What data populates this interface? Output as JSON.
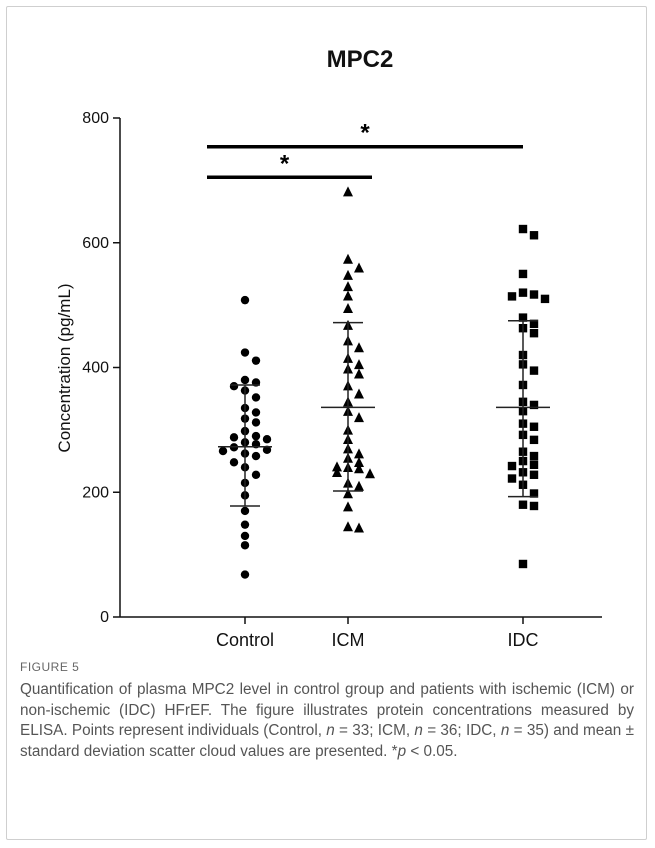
{
  "chart_data": {
    "type": "scatter",
    "title": "MPC2",
    "ylabel": "Concentration (pg/mL)",
    "xlabel": "",
    "ylim": [
      0,
      800
    ],
    "yticks": [
      0,
      200,
      400,
      600,
      800
    ],
    "categories": [
      "Control",
      "ICM",
      "IDC"
    ],
    "series": [
      {
        "name": "Control",
        "marker": "circle",
        "mean": 273,
        "sd_upper": 372,
        "sd_lower": 178,
        "values": [
          508,
          424,
          411,
          380,
          376,
          370,
          363,
          352,
          335,
          328,
          318,
          312,
          298,
          290,
          288,
          285,
          280,
          277,
          272,
          268,
          266,
          262,
          258,
          248,
          240,
          228,
          215,
          195,
          170,
          148,
          130,
          115,
          68
        ]
      },
      {
        "name": "ICM",
        "marker": "triangle",
        "mean": 336,
        "sd_upper": 472,
        "sd_lower": 202,
        "values": [
          682,
          574,
          560,
          548,
          530,
          515,
          495,
          468,
          443,
          432,
          415,
          405,
          398,
          390,
          371,
          358,
          345,
          330,
          320,
          300,
          285,
          270,
          262,
          255,
          248,
          241,
          240,
          238,
          232,
          230,
          215,
          210,
          198,
          177,
          145,
          143
        ]
      },
      {
        "name": "IDC",
        "marker": "square",
        "mean": 336,
        "sd_upper": 475,
        "sd_lower": 193,
        "values": [
          622,
          612,
          550,
          520,
          517,
          514,
          510,
          480,
          470,
          463,
          455,
          420,
          405,
          395,
          372,
          345,
          340,
          330,
          310,
          305,
          292,
          284,
          265,
          258,
          250,
          244,
          242,
          232,
          228,
          222,
          212,
          198,
          180,
          178,
          85
        ]
      }
    ],
    "significance": [
      {
        "from": "Control",
        "to": "ICM",
        "label": "*",
        "y": 705
      },
      {
        "from": "Control",
        "to": "IDC",
        "label": "*",
        "y": 754
      }
    ]
  },
  "caption": {
    "label": "FIGURE 5",
    "text": "Quantification of plasma MPC2 level in control group and patients with ischemic (ICM) or non-ischemic (IDC) HFrEF. The figure illustrates protein concentrations measured by ELISA. Points represent individuals (Control, n = 33; ICM, n = 36; IDC, n = 35) and mean ± standard deviation scatter cloud values are presented. *p < 0.05."
  }
}
